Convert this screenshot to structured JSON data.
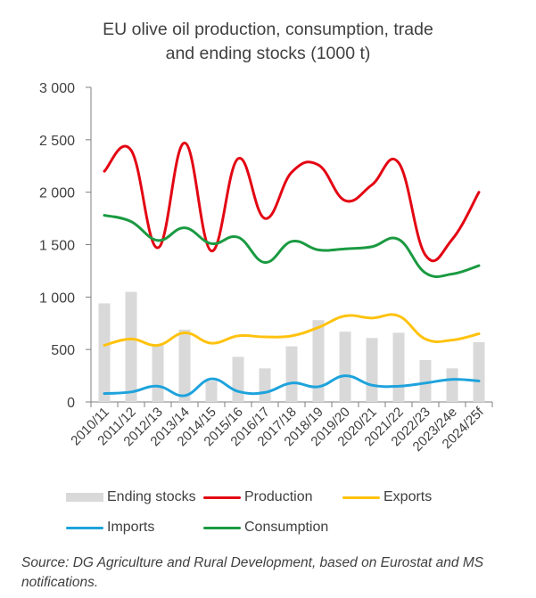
{
  "chart": {
    "title_line1": "EU olive oil production, consumption, trade",
    "title_line2": "and ending stocks (1000 t)",
    "source": "Source: DG Agriculture and Rural Development, based on Eurostat and MS notifications."
  },
  "colors": {
    "ending_stocks": "#d9d9d9",
    "production": "#e30613",
    "exports": "#ffc20e",
    "imports": "#1ea3dc",
    "consumption": "#1a9a41",
    "axis": "#7f7f7f",
    "text": "#404040"
  },
  "legend": [
    {
      "key": "ending_stocks",
      "label": "Ending stocks",
      "kind": "bar"
    },
    {
      "key": "production",
      "label": "Production",
      "kind": "line"
    },
    {
      "key": "exports",
      "label": "Exports",
      "kind": "line"
    },
    {
      "key": "imports",
      "label": "Imports",
      "kind": "line"
    },
    {
      "key": "consumption",
      "label": "Consumption",
      "kind": "line"
    }
  ],
  "chart_data": {
    "type": "bar",
    "title": "EU olive oil production, consumption, trade and ending stocks (1000 t)",
    "categories": [
      "2010/11",
      "2011/12",
      "2012/13",
      "2013/14",
      "2014/15",
      "2015/16",
      "2016/17",
      "2017/18",
      "2018/19",
      "2019/20",
      "2020/21",
      "2021/22",
      "2022/23",
      "2023/24e",
      "2024/25f"
    ],
    "ylim": [
      0,
      3000
    ],
    "yticks": [
      0,
      500,
      1000,
      1500,
      2000,
      2500,
      3000
    ],
    "ytick_labels": [
      "0",
      "500",
      "1 000",
      "1 500",
      "2 000",
      "2 500",
      "3 000"
    ],
    "grid": false,
    "legend_position": "bottom",
    "series": [
      {
        "key": "ending_stocks",
        "name": "Ending stocks",
        "type": "bar",
        "values": [
          940,
          1050,
          540,
          690,
          200,
          430,
          320,
          530,
          780,
          670,
          610,
          660,
          400,
          320,
          570
        ]
      },
      {
        "key": "production",
        "name": "Production",
        "type": "line",
        "values": [
          2200,
          2400,
          1470,
          2470,
          1440,
          2320,
          1750,
          2190,
          2260,
          1920,
          2070,
          2280,
          1400,
          1550,
          2000
        ]
      },
      {
        "key": "exports",
        "name": "Exports",
        "type": "line",
        "values": [
          540,
          600,
          540,
          660,
          560,
          630,
          620,
          630,
          710,
          820,
          800,
          820,
          600,
          590,
          650
        ]
      },
      {
        "key": "imports",
        "name": "Imports",
        "type": "line",
        "values": [
          80,
          95,
          150,
          60,
          220,
          100,
          90,
          180,
          145,
          250,
          160,
          150,
          180,
          215,
          200
        ]
      },
      {
        "key": "consumption",
        "name": "Consumption",
        "type": "line",
        "values": [
          1780,
          1720,
          1540,
          1660,
          1510,
          1570,
          1330,
          1530,
          1450,
          1460,
          1480,
          1550,
          1230,
          1220,
          1300
        ]
      }
    ]
  }
}
